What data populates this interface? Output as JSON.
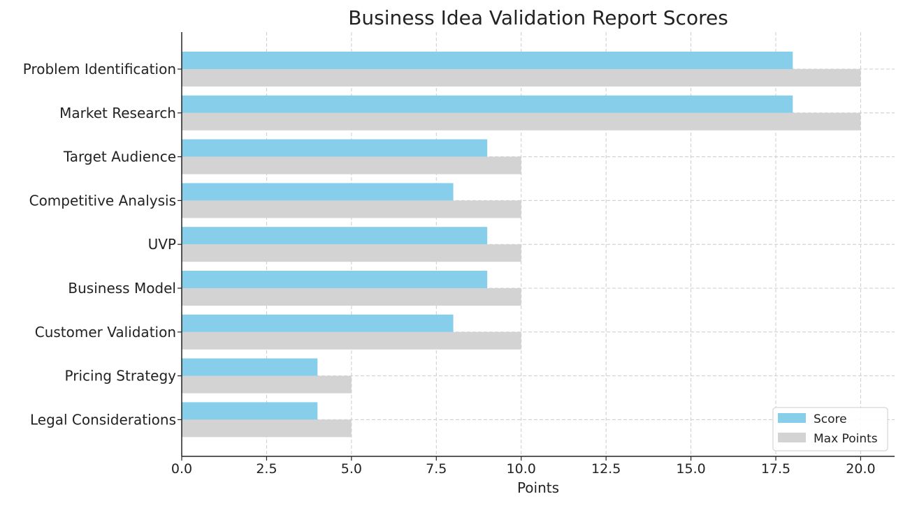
{
  "chart_data": {
    "type": "bar",
    "orientation": "horizontal",
    "title": "Business Idea Validation Report Scores",
    "xlabel": "Points",
    "ylabel": "",
    "xlim": [
      0,
      21
    ],
    "x_ticks": [
      "0.0",
      "2.5",
      "5.0",
      "7.5",
      "10.0",
      "12.5",
      "15.0",
      "17.5",
      "20.0"
    ],
    "grid": true,
    "legend_position": "bottom-right",
    "categories": [
      "Problem Identification",
      "Market Research",
      "Target Audience",
      "Competitive Analysis",
      "UVP",
      "Business Model",
      "Customer Validation",
      "Pricing Strategy",
      "Legal Considerations"
    ],
    "series": [
      {
        "name": "Score",
        "color": "#87CEEB",
        "values": [
          18,
          18,
          9,
          8,
          9,
          9,
          8,
          4,
          4
        ]
      },
      {
        "name": "Max Points",
        "color": "#D3D3D3",
        "values": [
          20,
          20,
          10,
          10,
          10,
          10,
          10,
          5,
          5
        ]
      }
    ]
  }
}
